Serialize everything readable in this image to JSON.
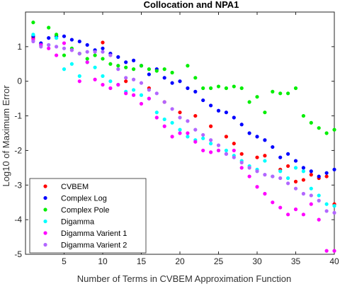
{
  "chart_data": {
    "type": "scatter",
    "title": "Collocation and NPA1",
    "xlabel": "Number of Terms in CVBEM Approximation Function",
    "ylabel": "Log10 of Maximum Error",
    "xlim": [
      0,
      40
    ],
    "ylim": [
      -5,
      2
    ],
    "x_ticks": [
      5,
      10,
      15,
      20,
      25,
      30,
      35,
      40
    ],
    "y_ticks": [
      1,
      0,
      -1,
      -2,
      -3,
      -4,
      -5
    ],
    "x_tick_labels": [
      "5",
      "10",
      "15",
      "20",
      "25",
      "30",
      "35",
      "40"
    ],
    "y_tick_labels": [
      "1",
      "0",
      "-1",
      "-2",
      "-3",
      "-4",
      "-5"
    ],
    "grid": false,
    "legend_position": "bottom-left",
    "series": [
      {
        "name": "CVBEM",
        "color": "#ff0000",
        "x": [
          1,
          4,
          10,
          13,
          16,
          18,
          20,
          22,
          24,
          26,
          27,
          28,
          30,
          31,
          33,
          34,
          35,
          36,
          37,
          38,
          39,
          40
        ],
        "y": [
          1.25,
          1.3,
          1.12,
          0.0,
          -0.2,
          -0.6,
          -0.9,
          -1.0,
          -1.3,
          -1.6,
          -1.8,
          -2.1,
          -2.2,
          -2.15,
          -2.55,
          -2.45,
          -2.9,
          -2.85,
          -2.7,
          -2.8,
          -2.75,
          -3.55
        ]
      },
      {
        "name": "Complex Log",
        "color": "#0000ff",
        "x": [
          1,
          2,
          3,
          4,
          5,
          6,
          7,
          8,
          9,
          10,
          11,
          12,
          13,
          14,
          15,
          16,
          17,
          18,
          19,
          20,
          21,
          22,
          23,
          24,
          25,
          26,
          27,
          28,
          29,
          30,
          31,
          32,
          33,
          34,
          35,
          36,
          37,
          38,
          39,
          40
        ],
        "y": [
          1.3,
          1.1,
          1.25,
          1.3,
          1.3,
          1.2,
          1.15,
          1.05,
          0.9,
          0.95,
          0.8,
          0.7,
          0.55,
          0.6,
          0.45,
          0.2,
          0.35,
          0.1,
          -0.05,
          0.0,
          -0.2,
          -0.3,
          -0.55,
          -0.7,
          -0.85,
          -0.9,
          -1.05,
          -1.25,
          -1.5,
          -1.6,
          -1.7,
          -1.9,
          -2.2,
          -2.1,
          -2.3,
          -2.5,
          -2.6,
          -2.75,
          -2.65,
          -2.55
        ]
      },
      {
        "name": "Complex Pole",
        "color": "#00ee00",
        "x": [
          1,
          2,
          3,
          4,
          5,
          6,
          7,
          8,
          9,
          10,
          11,
          12,
          13,
          14,
          15,
          16,
          17,
          18,
          19,
          21,
          22,
          23,
          24,
          25,
          26,
          27,
          28,
          29,
          30,
          31,
          32,
          33,
          34,
          35,
          36,
          37,
          38,
          39,
          40
        ],
        "y": [
          1.7,
          1.05,
          1.55,
          1.35,
          0.75,
          0.95,
          0.8,
          0.65,
          0.75,
          0.65,
          0.5,
          0.45,
          0.4,
          0.35,
          0.45,
          0.35,
          0.3,
          0.35,
          0.25,
          0.45,
          0.1,
          -0.2,
          -0.2,
          -0.15,
          -0.2,
          -0.15,
          -0.2,
          -0.6,
          -0.45,
          -0.9,
          -0.3,
          -0.35,
          -0.35,
          -0.2,
          -1.0,
          -1.2,
          -1.35,
          -1.5,
          -1.4
        ]
      },
      {
        "name": "Digamma",
        "color": "#00ffff",
        "x": [
          1,
          3,
          4,
          5,
          6,
          7,
          8,
          9,
          10,
          11,
          12,
          13,
          14,
          15,
          16,
          17,
          18,
          19,
          20,
          21,
          22,
          23,
          24,
          25,
          26,
          27,
          28,
          29,
          30,
          31,
          32,
          33,
          34,
          35,
          36,
          37,
          38,
          39,
          40
        ],
        "y": [
          1.35,
          1.05,
          1.25,
          0.35,
          0.5,
          0.15,
          0.55,
          0.4,
          0.15,
          0.0,
          -0.1,
          -0.3,
          -0.25,
          -0.4,
          -0.5,
          -0.9,
          -1.1,
          -1.2,
          -1.4,
          -1.6,
          -1.7,
          -1.65,
          -1.8,
          -2.0,
          -2.0,
          -2.15,
          -2.3,
          -2.45,
          -2.55,
          -2.3,
          -2.75,
          -2.6,
          -2.8,
          -2.5,
          -2.6,
          -3.1,
          -3.3,
          -3.55,
          -3.6
        ]
      },
      {
        "name": "Digamma Varient 1",
        "color": "#ff00ff",
        "x": [
          1,
          2,
          3,
          4,
          5,
          6,
          7,
          8,
          9,
          10,
          11,
          12,
          13,
          14,
          15,
          16,
          17,
          18,
          19,
          20,
          21,
          22,
          23,
          24,
          25,
          26,
          27,
          28,
          29,
          30,
          31,
          32,
          33,
          34,
          35,
          36,
          37,
          38,
          39,
          40
        ],
        "y": [
          1.2,
          1.05,
          0.95,
          0.75,
          1.1,
          0.9,
          0.0,
          0.55,
          0.05,
          -0.1,
          -0.2,
          -0.1,
          -0.35,
          -0.4,
          -0.65,
          -0.5,
          -1.05,
          -1.3,
          -1.6,
          -1.5,
          -1.5,
          -1.75,
          -2.0,
          -2.05,
          -2.0,
          -2.1,
          -2.0,
          -2.5,
          -2.75,
          -3.05,
          -3.25,
          -3.5,
          -3.65,
          -3.85,
          -3.7,
          -3.85,
          -3.55,
          -4.0,
          -4.9,
          -4.9
        ]
      },
      {
        "name": "Digamma Varient 2",
        "color": "#b266ff",
        "x": [
          1,
          2,
          3,
          4,
          5,
          6,
          7,
          8,
          9,
          10,
          11,
          12,
          13,
          14,
          15,
          16,
          17,
          18,
          19,
          20,
          21,
          22,
          23,
          24,
          25,
          26,
          27,
          28,
          29,
          30,
          31,
          32,
          33,
          34,
          35,
          36,
          37,
          38,
          39,
          40
        ],
        "y": [
          1.15,
          1.0,
          1.05,
          1.0,
          0.95,
          0.9,
          0.8,
          0.85,
          0.85,
          0.85,
          0.75,
          0.35,
          0.1,
          0.05,
          -0.05,
          -0.25,
          -0.35,
          -0.6,
          -0.8,
          -1.05,
          -1.15,
          -1.4,
          -1.55,
          -1.7,
          -1.85,
          -2.1,
          -2.2,
          -2.35,
          -2.5,
          -2.6,
          -2.7,
          -2.75,
          -2.8,
          -2.95,
          -3.1,
          -3.25,
          -3.3,
          -3.45,
          -3.75,
          -3.8
        ]
      }
    ]
  }
}
